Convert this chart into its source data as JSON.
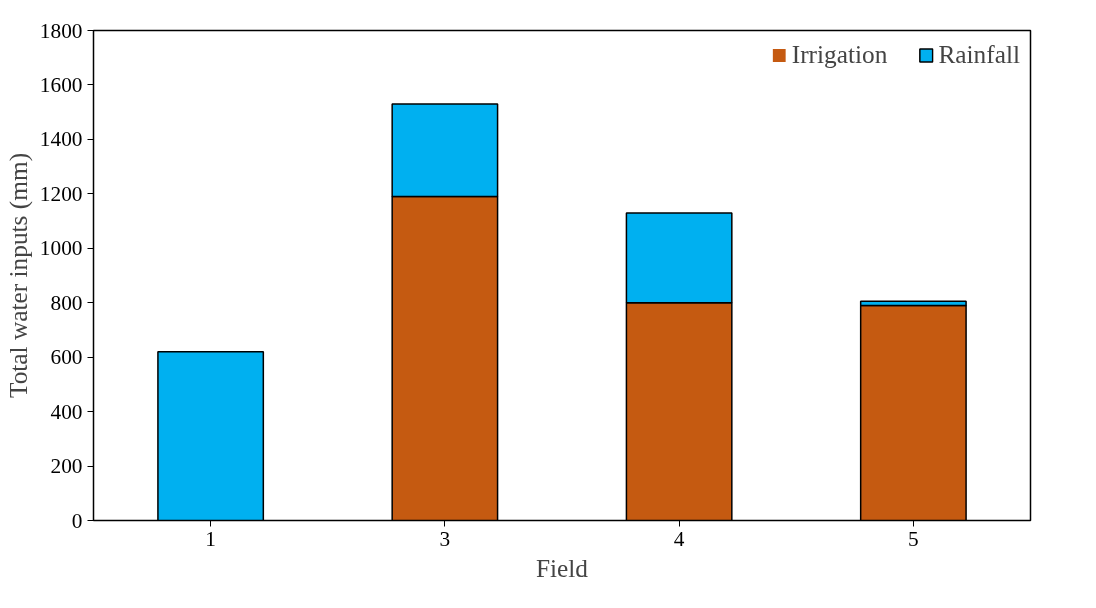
{
  "chart_data": {
    "type": "bar",
    "stacked": true,
    "xlabel": "Field",
    "ylabel": "Total water inputs (mm)",
    "categories": [
      "1",
      "3",
      "4",
      "5"
    ],
    "series": [
      {
        "name": "Irrigation",
        "color": "#c55a11",
        "values": [
          0,
          1190,
          800,
          790
        ]
      },
      {
        "name": "Rainfall",
        "color": "#00b0f0",
        "values": [
          620,
          340,
          330,
          15
        ]
      }
    ],
    "ylim": [
      0,
      1800
    ],
    "yticks": [
      0,
      200,
      400,
      600,
      800,
      1000,
      1200,
      1400,
      1600,
      1800
    ],
    "grid": false,
    "legend": "top right"
  }
}
